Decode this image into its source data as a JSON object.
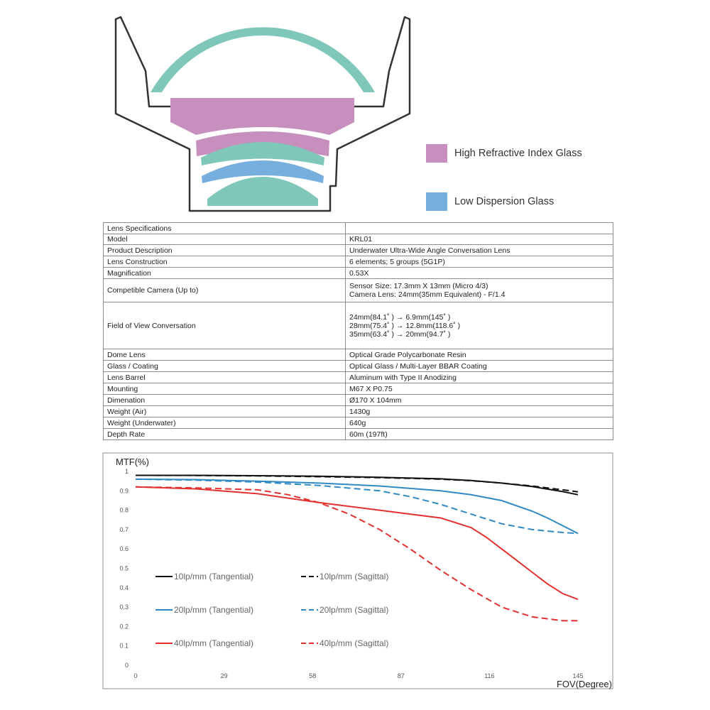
{
  "legend": {
    "items": [
      {
        "label": "High Refractive Index Glass",
        "color": "#c78fbd"
      },
      {
        "label": "Low Dispersion Glass",
        "color": "#76aedd"
      }
    ]
  },
  "lens_colors": {
    "dome": "#7fc7b9",
    "high_refractive": "#c78fbd",
    "low_dispersion": "#76aedd",
    "housing_stroke": "#333333"
  },
  "table": {
    "header": "Lens Specifications",
    "rows": [
      {
        "key": "Model",
        "value": "KRL01"
      },
      {
        "key": "Product Description",
        "value": "Underwater Ultra-Wide Angle Conversation Lens"
      },
      {
        "key": "Lens Construction",
        "value": "6 elements; 5 groups (5G1P)"
      },
      {
        "key": "Magnification",
        "value": "0.53X"
      },
      {
        "key": "Competible Camera (Up to)",
        "value": "Sensor Size: 17.3mm X 13mm (Micro 4/3)\nCamera Lens: 24mm(35mm Equivalent) - F/1.4"
      },
      {
        "key": "Field of View Conversation",
        "value": "24mm(84.1˚ ) → 6.9mm(145˚ )\n28mm(75.4˚ ) → 12.8mm(118.6˚ )\n35mm(63.4˚ ) → 20mm(94.7˚ )"
      },
      {
        "key": "Dome Lens",
        "value": "Optical Grade Polycarbonate Resin"
      },
      {
        "key": "Glass / Coating",
        "value": "Optical Glass / Multi-Layer BBAR Coating"
      },
      {
        "key": "Lens Barrel",
        "value": "Aluminum with Type II Anodizing"
      },
      {
        "key": "Mounting",
        "value": "M67 X P0.75"
      },
      {
        "key": "Dimenation",
        "value": "Ø170 X 104mm"
      },
      {
        "key": "Weight (Air)",
        "value": "1430g"
      },
      {
        "key": "Weight (Underwater)",
        "value": "640g"
      },
      {
        "key": "Depth Rate",
        "value": "60m (197ft)"
      }
    ]
  },
  "chart_data": {
    "type": "line",
    "title": "",
    "xlabel": "FOV(Degree)",
    "ylabel": "MTF(%)",
    "xlim": [
      0,
      145
    ],
    "ylim": [
      0,
      1
    ],
    "xticks": [
      0,
      29,
      58,
      87,
      116,
      145
    ],
    "yticks": [
      0,
      0.1,
      0.2,
      0.3,
      0.4,
      0.5,
      0.6,
      0.7,
      0.8,
      0.9,
      1
    ],
    "ytick_labels": [
      "0",
      "0.1",
      "0.2",
      "0.3",
      "0.4",
      "0.5",
      "0.6",
      "0.7",
      "0.8",
      "0.9",
      "1"
    ],
    "grid": false,
    "legend_position": "lower-left",
    "series": [
      {
        "name": "10lp/mm (Tangential)",
        "color": "#111111",
        "dash": false,
        "x": [
          0,
          20,
          40,
          60,
          80,
          100,
          110,
          120,
          130,
          140,
          145
        ],
        "y": [
          0.98,
          0.98,
          0.978,
          0.975,
          0.97,
          0.962,
          0.953,
          0.94,
          0.922,
          0.896,
          0.88
        ]
      },
      {
        "name": "10lp/mm (Sagittal)",
        "color": "#111111",
        "dash": true,
        "x": [
          0,
          20,
          40,
          60,
          80,
          100,
          110,
          120,
          130,
          140,
          145
        ],
        "y": [
          0.98,
          0.979,
          0.977,
          0.973,
          0.968,
          0.96,
          0.952,
          0.94,
          0.925,
          0.905,
          0.895
        ]
      },
      {
        "name": "20lp/mm (Tangential)",
        "color": "#2f8ac4",
        "dash": false,
        "x": [
          0,
          20,
          40,
          60,
          80,
          100,
          110,
          120,
          130,
          135,
          140,
          145
        ],
        "y": [
          0.96,
          0.958,
          0.95,
          0.94,
          0.925,
          0.9,
          0.88,
          0.85,
          0.795,
          0.76,
          0.72,
          0.68
        ]
      },
      {
        "name": "20lp/mm (Sagittal)",
        "color": "#2f8ac4",
        "dash": true,
        "x": [
          0,
          20,
          40,
          60,
          80,
          90,
          100,
          110,
          120,
          130,
          140,
          145
        ],
        "y": [
          0.96,
          0.955,
          0.945,
          0.928,
          0.9,
          0.87,
          0.83,
          0.78,
          0.73,
          0.7,
          0.685,
          0.68
        ]
      },
      {
        "name": "40lp/mm (Tangential)",
        "color": "#e2312f",
        "dash": false,
        "x": [
          0,
          20,
          40,
          60,
          80,
          90,
          100,
          110,
          115,
          120,
          125,
          130,
          135,
          140,
          145
        ],
        "y": [
          0.92,
          0.91,
          0.885,
          0.84,
          0.8,
          0.78,
          0.76,
          0.71,
          0.66,
          0.6,
          0.54,
          0.48,
          0.42,
          0.37,
          0.34
        ]
      },
      {
        "name": "40lp/mm (Sagittal)",
        "color": "#e2312f",
        "dash": true,
        "x": [
          0,
          20,
          40,
          50,
          60,
          70,
          80,
          90,
          100,
          110,
          120,
          130,
          140,
          145
        ],
        "y": [
          0.92,
          0.915,
          0.905,
          0.88,
          0.84,
          0.78,
          0.7,
          0.6,
          0.49,
          0.39,
          0.3,
          0.25,
          0.23,
          0.23
        ]
      }
    ]
  }
}
